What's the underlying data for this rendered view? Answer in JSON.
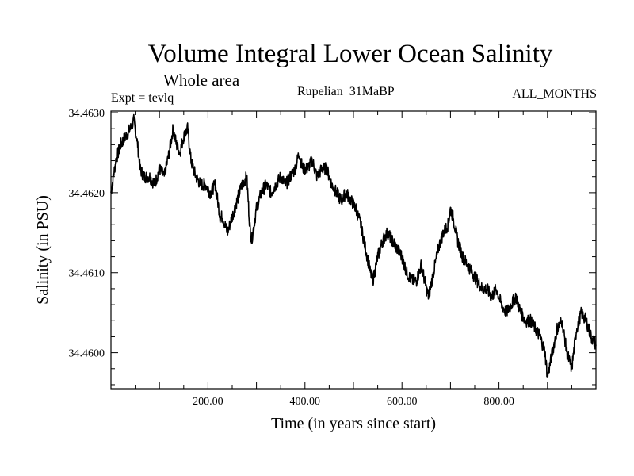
{
  "header": {
    "title": "Volume Integral Lower Ocean Salinity",
    "subtitle": "Whole area",
    "experiment": "Expt = tevlq",
    "period": "Rupelian  31MaBP",
    "months": "ALL_MONTHS"
  },
  "chart_data": {
    "type": "line",
    "title": "Volume Integral Lower Ocean Salinity",
    "xlabel": "Time (in years since start)",
    "ylabel": "Salinity (in PSU)",
    "xlim": [
      0,
      1000
    ],
    "ylim": [
      34.45955,
      34.46302
    ],
    "x_ticks": [
      200,
      400,
      600,
      800
    ],
    "x_tick_labels": [
      "200.00",
      "400.00",
      "600.00",
      "800.00"
    ],
    "y_ticks": [
      34.46,
      34.461,
      34.462,
      34.463
    ],
    "y_tick_labels": [
      "34.4600",
      "34.4610",
      "34.4620",
      "34.4630"
    ],
    "series": [
      {
        "name": "Salinity",
        "x": [
          0,
          10,
          20,
          30,
          40,
          47,
          55,
          60,
          68,
          80,
          90,
          100,
          110,
          120,
          128,
          135,
          142,
          150,
          158,
          165,
          175,
          185,
          195,
          205,
          215,
          225,
          230,
          240,
          250,
          260,
          270,
          280,
          286,
          290,
          300,
          310,
          320,
          330,
          340,
          350,
          360,
          370,
          380,
          388,
          395,
          405,
          415,
          425,
          435,
          445,
          455,
          465,
          475,
          485,
          495,
          505,
          515,
          525,
          535,
          540,
          550,
          560,
          570,
          580,
          590,
          600,
          610,
          620,
          630,
          640,
          650,
          655,
          665,
          675,
          685,
          695,
          700,
          705,
          715,
          725,
          735,
          745,
          755,
          765,
          775,
          785,
          795,
          805,
          815,
          825,
          835,
          845,
          855,
          865,
          875,
          885,
          895,
          900,
          910,
          920,
          930,
          940,
          950,
          960,
          970,
          980,
          990,
          1000
        ],
        "values": [
          34.462,
          34.4624,
          34.4626,
          34.4627,
          34.4628,
          34.4629,
          34.4626,
          34.4623,
          34.4622,
          34.4622,
          34.4621,
          34.4623,
          34.4622,
          34.4625,
          34.4628,
          34.4626,
          34.4625,
          34.4627,
          34.4628,
          34.4624,
          34.4622,
          34.4621,
          34.4621,
          34.462,
          34.4621,
          34.4617,
          34.4617,
          34.4615,
          34.4617,
          34.4619,
          34.4621,
          34.4622,
          34.4616,
          34.4614,
          34.4618,
          34.462,
          34.4621,
          34.462,
          34.4621,
          34.4622,
          34.4621,
          34.4622,
          34.4623,
          34.4625,
          34.4623,
          34.4623,
          34.4624,
          34.4622,
          34.4623,
          34.4623,
          34.4621,
          34.462,
          34.4619,
          34.462,
          34.4619,
          34.4618,
          34.4616,
          34.4613,
          34.461,
          34.4609,
          34.4612,
          34.4614,
          34.4615,
          34.4614,
          34.4613,
          34.4612,
          34.461,
          34.4609,
          34.4609,
          34.4611,
          34.4608,
          34.4607,
          34.461,
          34.4613,
          34.4615,
          34.4616,
          34.4618,
          34.4617,
          34.4614,
          34.4612,
          34.4611,
          34.461,
          34.4609,
          34.4608,
          34.4608,
          34.4607,
          34.4608,
          34.4606,
          34.4605,
          34.4606,
          34.4607,
          34.4605,
          34.4604,
          34.4604,
          34.4603,
          34.4602,
          34.46,
          34.4597,
          34.46,
          34.4603,
          34.4604,
          34.46,
          34.4598,
          34.4603,
          34.4605,
          34.4604,
          34.4602,
          34.4601
        ]
      }
    ]
  }
}
